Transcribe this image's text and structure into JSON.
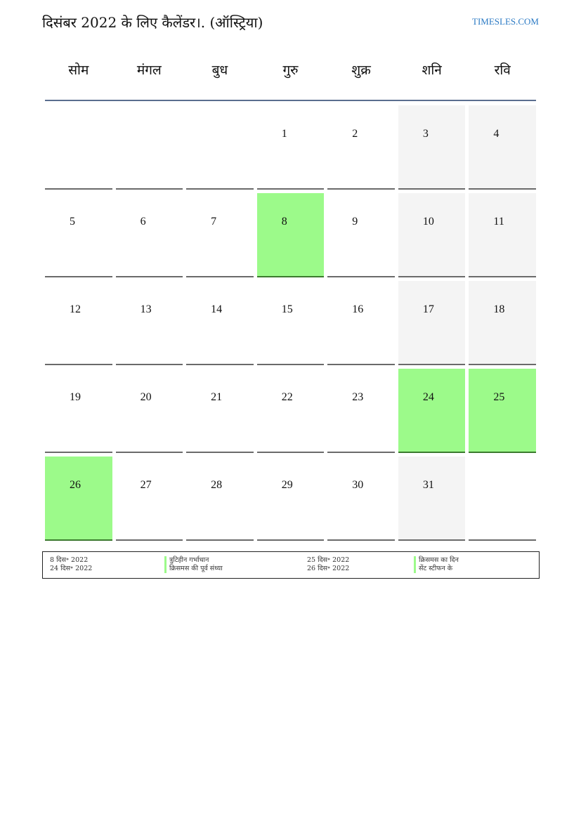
{
  "header": {
    "title": "दिसंबर 2022 के लिए कैलेंडर।. (ऑस्ट्रिया)",
    "site": "TIMESLES.COM"
  },
  "weekdays": [
    "सोम",
    "मंगल",
    "बुध",
    "गुरु",
    "शुक्र",
    "शनि",
    "रवि"
  ],
  "colors": {
    "holiday": "#9cfa8a",
    "weekend": "#f4f4f4",
    "link": "#2b7ac4"
  },
  "weeks": [
    [
      null,
      null,
      null,
      1,
      2,
      3,
      4
    ],
    [
      5,
      6,
      7,
      8,
      9,
      10,
      11
    ],
    [
      12,
      13,
      14,
      15,
      16,
      17,
      18
    ],
    [
      19,
      20,
      21,
      22,
      23,
      24,
      25
    ],
    [
      26,
      27,
      28,
      29,
      30,
      31,
      null
    ]
  ],
  "holiday_days": [
    8,
    24,
    25,
    26
  ],
  "legend": [
    {
      "date": "8 दिस॰ 2022",
      "name": "त्रुटिहीन गर्भाधान"
    },
    {
      "date": "24 दिस॰ 2022",
      "name": "क्रिसमस की पूर्व संध्या"
    },
    {
      "date": "25 दिस॰ 2022",
      "name": "क्रिसमस का दिन"
    },
    {
      "date": "26 दिस॰ 2022",
      "name": "सेंट स्टीफन के"
    }
  ]
}
